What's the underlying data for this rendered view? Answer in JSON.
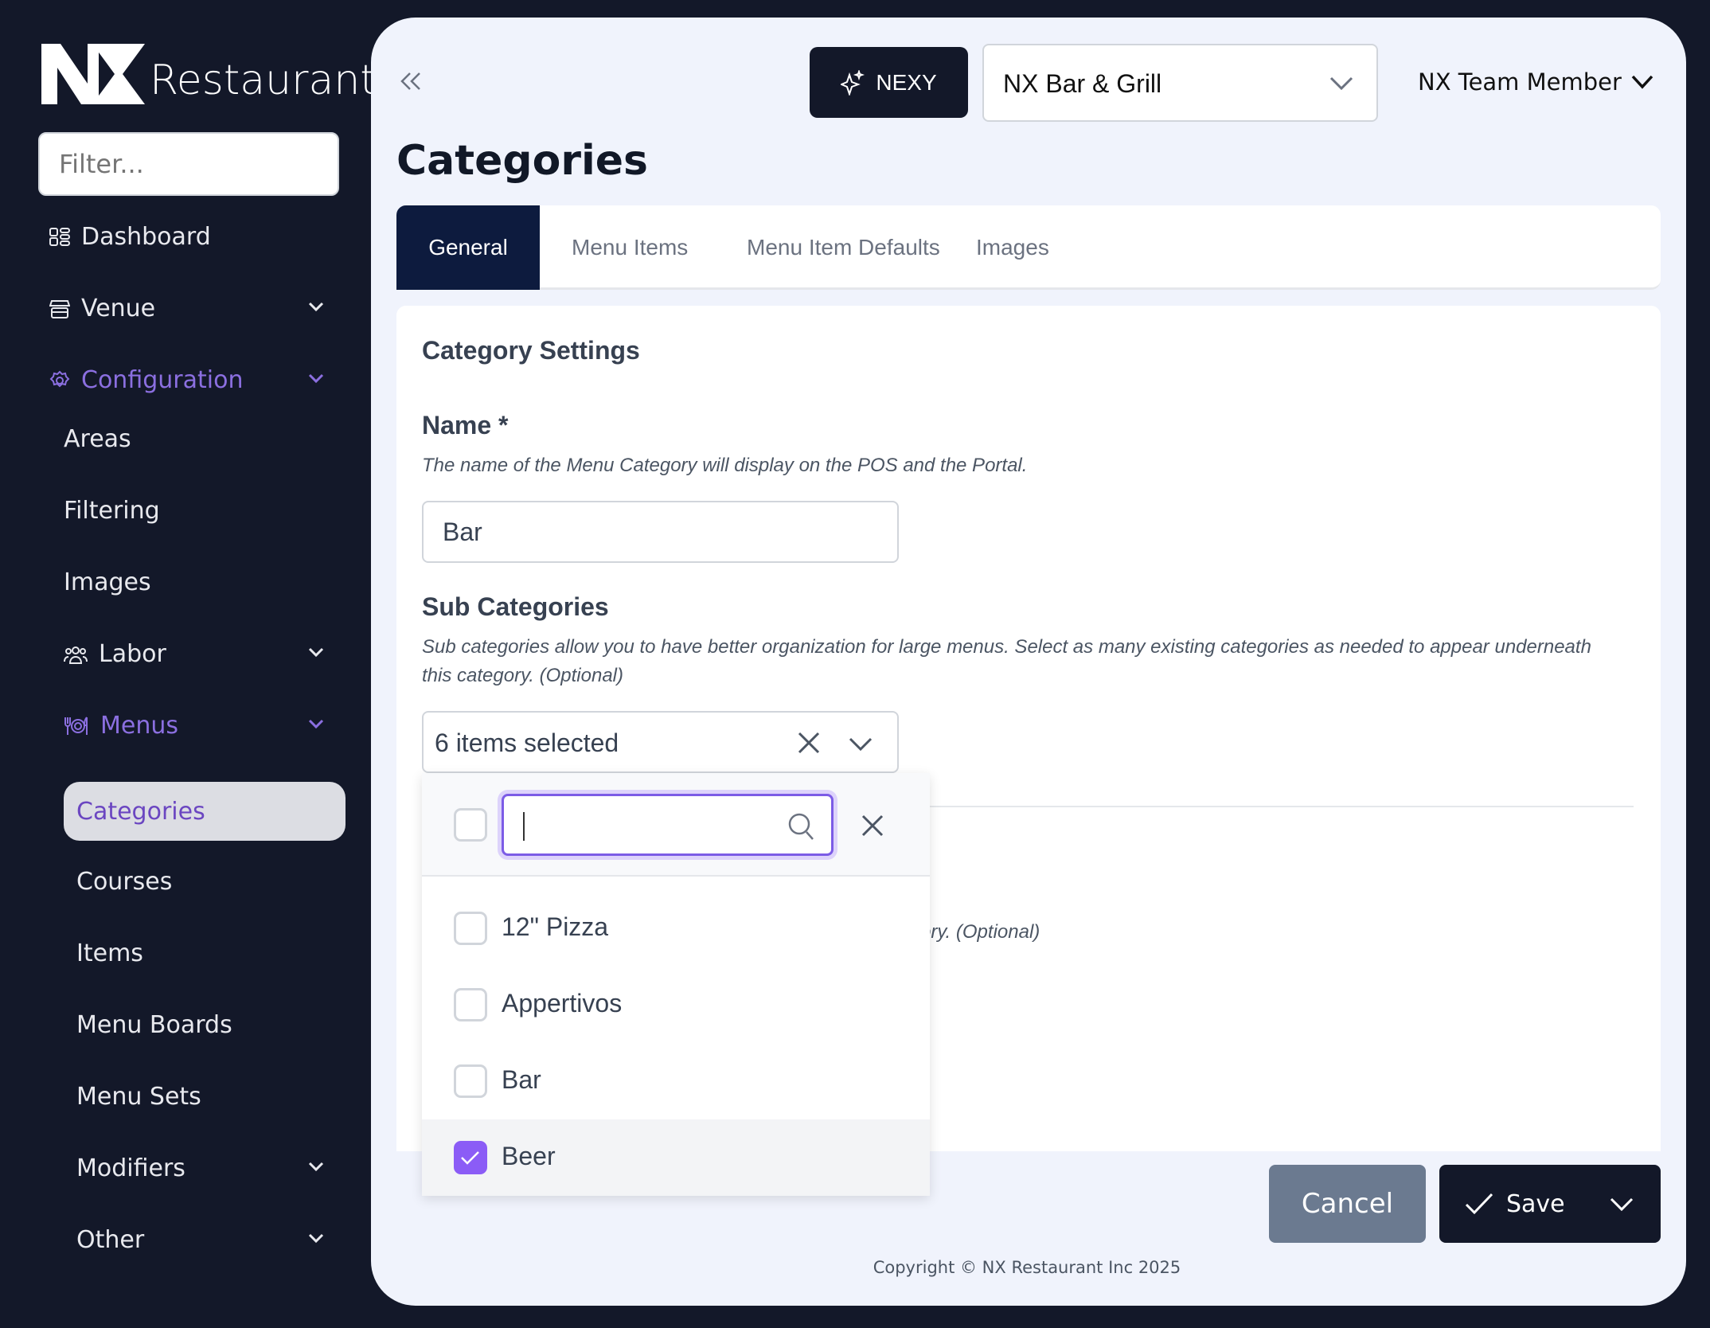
{
  "brand": {
    "logo_mark": "NX",
    "logo_text": "Restaurant"
  },
  "sidebar": {
    "filter_placeholder": "Filter...",
    "items": [
      {
        "label": "Dashboard",
        "icon": "dashboard-icon"
      },
      {
        "label": "Venue",
        "icon": "store-icon",
        "expandable": true
      },
      {
        "label": "Configuration",
        "icon": "gear-icon",
        "expandable": true,
        "active": true
      },
      {
        "label": "Areas"
      },
      {
        "label": "Filtering"
      },
      {
        "label": "Images"
      },
      {
        "label": "Labor",
        "icon": "users-icon",
        "expandable": true
      },
      {
        "label": "Menus",
        "icon": "utensils-icon",
        "expandable": true,
        "active": true
      },
      {
        "label": "Categories",
        "selected": true
      },
      {
        "label": "Courses"
      },
      {
        "label": "Items"
      },
      {
        "label": "Menu Boards"
      },
      {
        "label": "Menu Sets"
      },
      {
        "label": "Modifiers",
        "expandable": true
      },
      {
        "label": "Other",
        "expandable": true
      }
    ]
  },
  "header": {
    "nexy_label": "NEXY",
    "venue": "NX Bar & Grill",
    "user": "NX Team Member"
  },
  "page": {
    "title": "Categories"
  },
  "tabs": [
    {
      "label": "General",
      "active": true
    },
    {
      "label": "Menu Items"
    },
    {
      "label": "Menu Item Defaults"
    },
    {
      "label": "Images"
    }
  ],
  "form": {
    "section_title": "Category Settings",
    "name_label": "Name *",
    "name_desc": "The name of the Menu Category will display on the POS and the Portal.",
    "name_value": "Bar",
    "sub_label": "Sub Categories",
    "sub_desc": "Sub categories allow you to have better organization for large menus. Select as many existing categories as needed to appear underneath this category. (Optional)",
    "sub_value": "6 items selected",
    "hidden_desc_fragment": "ory. (Optional)"
  },
  "dropdown": {
    "search_value": "",
    "options": [
      {
        "label": "12\" Pizza",
        "checked": false
      },
      {
        "label": "Appertivos",
        "checked": false
      },
      {
        "label": "Bar",
        "checked": false
      },
      {
        "label": "Beer",
        "checked": true
      }
    ]
  },
  "footer": {
    "cancel": "Cancel",
    "save": "Save",
    "copyright": "Copyright © NX Restaurant Inc 2025"
  },
  "colors": {
    "sidebar": "#131829",
    "accent": "#8b5cf6",
    "primary": "#0d1b3e",
    "cancel": "#6b7a90"
  }
}
